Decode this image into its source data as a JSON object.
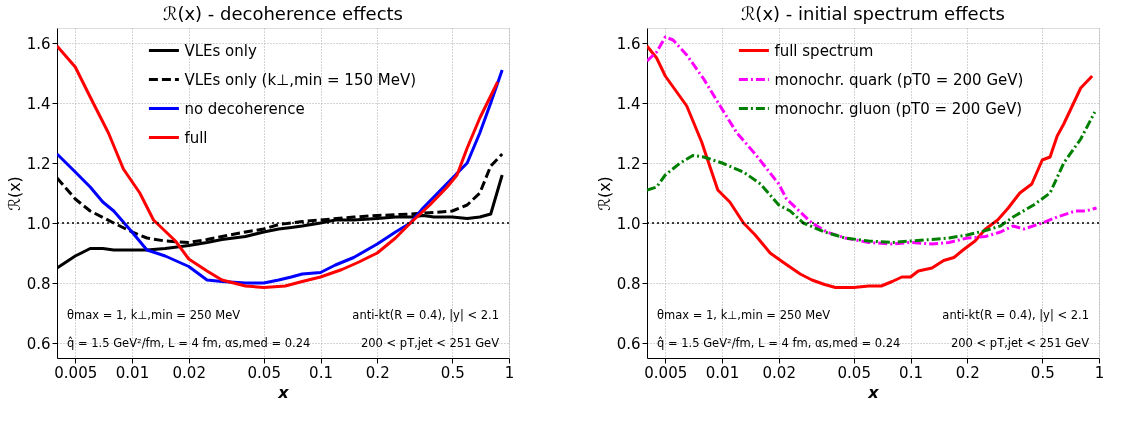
{
  "chart_data": [
    {
      "type": "line",
      "title": "ℛ(x) - decoherence effects",
      "xlabel": "x",
      "ylabel": "ℛ(x)",
      "log": "x",
      "grid": true,
      "legend": "top",
      "marker": "none",
      "xlim": [
        0.004,
        1
      ],
      "xticks": [
        0.005,
        0.01,
        0.02,
        0.05,
        0.1,
        0.2,
        0.5,
        1
      ],
      "ylim": [
        0.55,
        1.65
      ],
      "yticks": [
        0.6,
        0.8,
        {
          "value": 1,
          "label": "1.0"
        },
        1.2,
        1.4,
        1.6
      ],
      "ref_lines": [
        {
          "axis": "y",
          "value": 1,
          "color": "#000000",
          "line_style": "dotted"
        }
      ],
      "annotations": [
        "θmax = 1, k⊥,min = 250 MeV",
        "q̂ = 1.5 GeV²/fm, L = 4 fm, αs,med = 0.24",
        "anti-kt(R = 0.4), |y| < 2.1",
        "200 < pT,jet < 251 GeV"
      ],
      "series": [
        {
          "name": "VLEs only",
          "color": "#000000",
          "line_style": "solid",
          "x": [
            0.004,
            0.005,
            0.006,
            0.007,
            0.008,
            0.01,
            0.012,
            0.015,
            0.02,
            0.025,
            0.03,
            0.04,
            0.05,
            0.06,
            0.07,
            0.08,
            0.1,
            0.12,
            0.15,
            0.2,
            0.25,
            0.3,
            0.35,
            0.4,
            0.5,
            0.6,
            0.7,
            0.8,
            0.92
          ],
          "values": [
            0.85,
            0.89,
            0.915,
            0.915,
            0.91,
            0.91,
            0.91,
            0.915,
            0.925,
            0.935,
            0.945,
            0.955,
            0.97,
            0.98,
            0.985,
            0.99,
            1.0,
            1.01,
            1.01,
            1.015,
            1.02,
            1.02,
            1.025,
            1.02,
            1.02,
            1.015,
            1.02,
            1.03,
            1.16
          ]
        },
        {
          "name": "VLEs only (k⊥,min = 150 MeV)",
          "color": "#000000",
          "line_style": "dashed",
          "x": [
            0.004,
            0.005,
            0.006,
            0.008,
            0.01,
            0.012,
            0.015,
            0.02,
            0.025,
            0.03,
            0.04,
            0.05,
            0.06,
            0.07,
            0.08,
            0.1,
            0.15,
            0.2,
            0.3,
            0.4,
            0.5,
            0.6,
            0.7,
            0.8,
            0.92
          ],
          "values": [
            1.15,
            1.08,
            1.04,
            1.0,
            0.97,
            0.95,
            0.94,
            0.935,
            0.945,
            0.955,
            0.97,
            0.98,
            0.995,
            1.0,
            1.005,
            1.01,
            1.02,
            1.025,
            1.03,
            1.035,
            1.04,
            1.06,
            1.1,
            1.19,
            1.23
          ]
        },
        {
          "name": "no decoherence",
          "color": "#0000ff",
          "line_style": "solid",
          "x": [
            0.004,
            0.005,
            0.006,
            0.007,
            0.008,
            0.01,
            0.012,
            0.015,
            0.02,
            0.025,
            0.03,
            0.04,
            0.05,
            0.06,
            0.07,
            0.08,
            0.1,
            0.12,
            0.15,
            0.2,
            0.25,
            0.3,
            0.35,
            0.45,
            0.6,
            0.7,
            0.8,
            0.92
          ],
          "values": [
            1.23,
            1.17,
            1.12,
            1.07,
            1.04,
            0.97,
            0.91,
            0.89,
            0.855,
            0.81,
            0.805,
            0.8,
            0.8,
            0.81,
            0.82,
            0.83,
            0.835,
            0.86,
            0.885,
            0.93,
            0.97,
            1.0,
            1.05,
            1.12,
            1.2,
            1.3,
            1.4,
            1.51
          ]
        },
        {
          "name": "full",
          "color": "#ff0000",
          "line_style": "solid",
          "x": [
            0.004,
            0.005,
            0.006,
            0.0075,
            0.009,
            0.011,
            0.013,
            0.017,
            0.02,
            0.025,
            0.03,
            0.04,
            0.05,
            0.065,
            0.08,
            0.1,
            0.13,
            0.16,
            0.2,
            0.25,
            0.3,
            0.38,
            0.47,
            0.53,
            0.6,
            0.7,
            0.87
          ],
          "values": [
            1.59,
            1.52,
            1.42,
            1.3,
            1.18,
            1.1,
            1.01,
            0.94,
            0.88,
            0.84,
            0.81,
            0.79,
            0.785,
            0.79,
            0.805,
            0.82,
            0.845,
            0.87,
            0.9,
            0.95,
            1.0,
            1.06,
            1.12,
            1.16,
            1.25,
            1.35,
            1.47
          ]
        }
      ]
    },
    {
      "type": "line",
      "title": "ℛ(x) - initial spectrum effects",
      "xlabel": "x",
      "ylabel": "ℛ(x)",
      "log": "x",
      "grid": true,
      "legend": "top",
      "marker": "none",
      "xlim": [
        0.004,
        1
      ],
      "xticks": [
        0.005,
        0.01,
        0.02,
        0.05,
        0.1,
        0.2,
        0.5,
        1
      ],
      "ylim": [
        0.55,
        1.65
      ],
      "yticks": [
        0.6,
        0.8,
        {
          "value": 1,
          "label": "1.0"
        },
        1.2,
        1.4,
        1.6
      ],
      "ref_lines": [
        {
          "axis": "y",
          "value": 1,
          "color": "#000000",
          "line_style": "dotted"
        }
      ],
      "annotations": [
        "θmax = 1, k⊥,min = 250 MeV",
        "q̂ = 1.5 GeV²/fm, L = 4 fm, αs,med = 0.24",
        "anti-kt(R = 0.4), |y| < 2.1",
        "200 < pT,jet < 251 GeV"
      ],
      "series": [
        {
          "name": "full spectrum",
          "color": "#ff0000",
          "line_style": "solid",
          "x": [
            0.004,
            0.0045,
            0.005,
            0.0065,
            0.0078,
            0.0085,
            0.0095,
            0.011,
            0.013,
            0.015,
            0.018,
            0.021,
            0.026,
            0.03,
            0.035,
            0.04,
            0.05,
            0.06,
            0.07,
            0.08,
            0.09,
            0.1,
            0.11,
            0.13,
            0.15,
            0.17,
            0.19,
            0.22,
            0.25,
            0.29,
            0.33,
            0.38,
            0.44,
            0.5,
            0.55,
            0.6,
            0.65,
            0.8,
            0.92
          ],
          "values": [
            1.59,
            1.55,
            1.49,
            1.39,
            1.27,
            1.2,
            1.11,
            1.07,
            1.0,
            0.96,
            0.9,
            0.87,
            0.83,
            0.81,
            0.795,
            0.785,
            0.785,
            0.79,
            0.79,
            0.805,
            0.82,
            0.82,
            0.84,
            0.85,
            0.875,
            0.885,
            0.91,
            0.94,
            0.98,
            1.01,
            1.05,
            1.1,
            1.13,
            1.21,
            1.22,
            1.29,
            1.33,
            1.45,
            1.49
          ]
        },
        {
          "name": "monochr. quark (pT0 = 200 GeV)",
          "color": "#ff00ff",
          "line_style": "dashdot",
          "x": [
            0.004,
            0.0045,
            0.005,
            0.0055,
            0.0065,
            0.008,
            0.01,
            0.012,
            0.015,
            0.02,
            0.022,
            0.03,
            0.036,
            0.045,
            0.06,
            0.08,
            0.1,
            0.13,
            0.16,
            0.2,
            0.25,
            0.3,
            0.35,
            0.4,
            0.5,
            0.6,
            0.75,
            0.85,
            0.97
          ],
          "values": [
            1.54,
            1.57,
            1.62,
            1.61,
            1.56,
            1.48,
            1.38,
            1.3,
            1.23,
            1.13,
            1.08,
            1.0,
            0.97,
            0.95,
            0.935,
            0.93,
            0.935,
            0.93,
            0.935,
            0.95,
            0.955,
            0.97,
            0.99,
            0.98,
            1.0,
            1.02,
            1.04,
            1.04,
            1.05
          ]
        },
        {
          "name": "monochr. gluon (pT0 = 200 GeV)",
          "color": "#008000",
          "line_style": "dashdot",
          "x": [
            0.004,
            0.0045,
            0.005,
            0.006,
            0.007,
            0.008,
            0.01,
            0.013,
            0.016,
            0.02,
            0.023,
            0.027,
            0.035,
            0.045,
            0.06,
            0.08,
            0.1,
            0.13,
            0.16,
            0.2,
            0.25,
            0.3,
            0.35,
            0.45,
            0.55,
            0.65,
            0.8,
            0.95
          ],
          "values": [
            1.11,
            1.12,
            1.16,
            1.2,
            1.225,
            1.22,
            1.2,
            1.17,
            1.13,
            1.06,
            1.04,
            1.0,
            0.97,
            0.95,
            0.94,
            0.935,
            0.94,
            0.945,
            0.95,
            0.96,
            0.975,
            0.99,
            1.02,
            1.06,
            1.1,
            1.2,
            1.28,
            1.37
          ]
        }
      ]
    }
  ]
}
